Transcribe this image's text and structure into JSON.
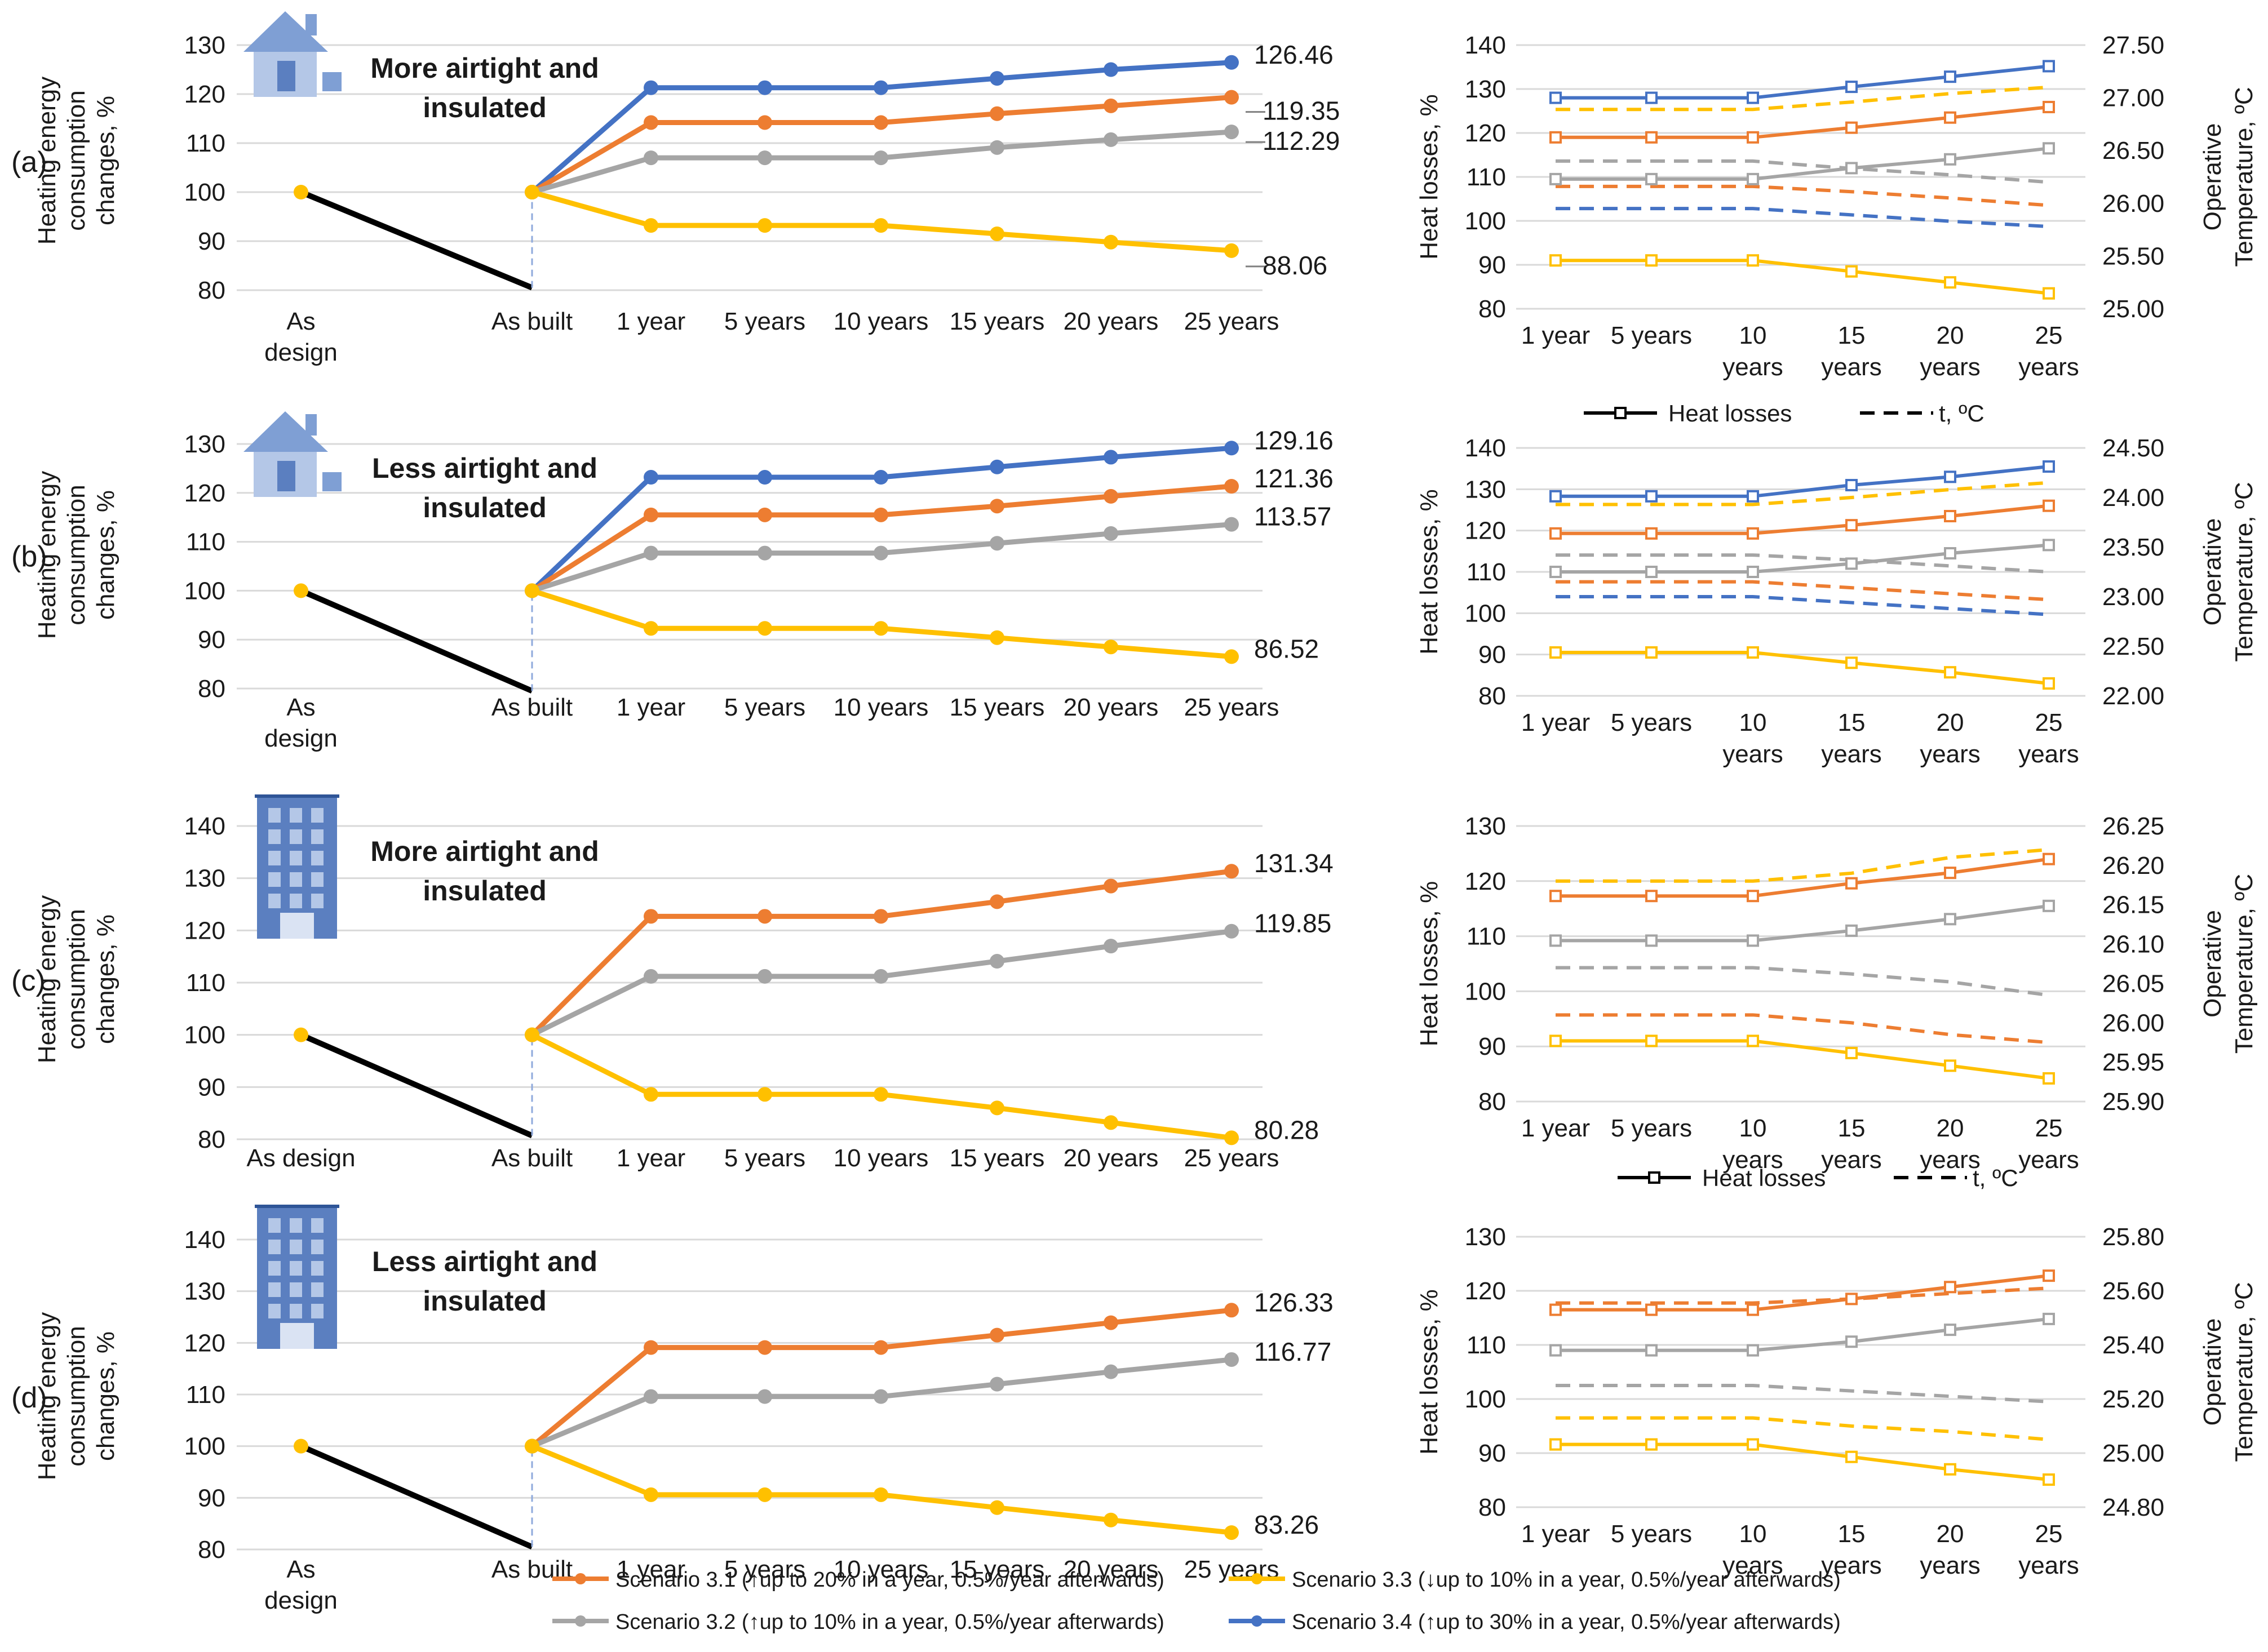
{
  "figure": {
    "scenario_colors": {
      "3.1": "#ED7D31",
      "3.2": "#A5A5A5",
      "3.3": "#FFC000",
      "3.4": "#4472C4"
    },
    "legend": {
      "items": [
        {
          "id": "3.1",
          "label": "Scenario 3.1 (↑up to 20% in a year, 0.5%/year afterwards)"
        },
        {
          "id": "3.3",
          "label": "Scenario 3.3 (↓up to 10% in a year, 0.5%/year afterwards)"
        },
        {
          "id": "3.2",
          "label": "Scenario 3.2 (↑up to 10% in a year, 0.5%/year afterwards)"
        },
        {
          "id": "3.4",
          "label": "Scenario 3.4 (↑up to 30% in a year, 0.5%/year afterwards)"
        }
      ]
    },
    "right_legend": {
      "solid": "Heat losses",
      "dashed": "t, ºC"
    }
  },
  "chart_data": [
    {
      "panel": "(a)",
      "type": "line",
      "icon": "house-icon",
      "title": "More airtight and insulated",
      "title_color": "#4472C4",
      "ylabel": "Heating energy consumption changes, %",
      "ylim": [
        80,
        130
      ],
      "yticks": [
        80,
        90,
        100,
        110,
        120,
        130
      ],
      "categories": [
        "As design",
        "As built",
        "1 year",
        "5 years",
        "10 years",
        "15 years",
        "20 years",
        "25 years"
      ],
      "baseline": {
        "as_design": 100,
        "as_built": 80.5
      },
      "series": [
        {
          "name": "Scenario 3.4",
          "id": "3.4",
          "values": [
            null,
            100,
            121.3,
            121.3,
            121.3,
            123.2,
            125.0,
            126.46
          ],
          "end_label": "126.46"
        },
        {
          "name": "Scenario 3.1",
          "id": "3.1",
          "values": [
            null,
            100,
            114.2,
            114.2,
            114.2,
            116.0,
            117.6,
            119.35
          ],
          "end_label": "119.35"
        },
        {
          "name": "Scenario 3.2",
          "id": "3.2",
          "values": [
            null,
            100,
            107.0,
            107.0,
            107.0,
            109.1,
            110.7,
            112.29
          ],
          "end_label": "112.29"
        },
        {
          "name": "Scenario 3.3",
          "id": "3.3",
          "values": [
            null,
            100,
            93.2,
            93.2,
            93.2,
            91.5,
            89.8,
            88.06
          ],
          "end_label": "88.06"
        }
      ]
    },
    {
      "panel": "(a)",
      "type": "line",
      "ylabel": "Heat losses, %",
      "y2label": "Operative Temperature, ºC",
      "ylim": [
        80,
        140
      ],
      "yticks": [
        80,
        90,
        100,
        110,
        120,
        130,
        140
      ],
      "y2lim": [
        25.0,
        27.5
      ],
      "y2ticks": [
        "25.00",
        "25.50",
        "26.00",
        "26.50",
        "27.00",
        "27.50"
      ],
      "categories": [
        "1 year",
        "5 years",
        "10 years",
        "15 years",
        "20 years",
        "25 years"
      ],
      "heat_losses": [
        {
          "id": "3.4",
          "values": [
            128,
            128,
            128,
            130.5,
            132.8,
            135.2
          ]
        },
        {
          "id": "3.1",
          "values": [
            119,
            119,
            119,
            121.2,
            123.5,
            125.9
          ]
        },
        {
          "id": "3.2",
          "values": [
            109.5,
            109.5,
            109.5,
            112,
            114,
            116.5
          ]
        },
        {
          "id": "3.3",
          "values": [
            91,
            91,
            91,
            88.5,
            86,
            83.5
          ]
        }
      ],
      "temperature": [
        {
          "id": "3.3",
          "values": [
            26.89,
            26.89,
            26.89,
            26.96,
            27.04,
            27.1
          ]
        },
        {
          "id": "3.2",
          "values": [
            26.4,
            26.4,
            26.4,
            26.33,
            26.27,
            26.2
          ]
        },
        {
          "id": "3.1",
          "values": [
            26.16,
            26.16,
            26.16,
            26.11,
            26.05,
            25.98
          ]
        },
        {
          "id": "3.4",
          "values": [
            25.95,
            25.95,
            25.95,
            25.89,
            25.83,
            25.78
          ]
        }
      ]
    },
    {
      "panel": "(b)",
      "type": "line",
      "icon": "house-icon",
      "title": "Less airtight and insulated",
      "title_color": "#8FAADC",
      "ylabel": "Heating energy consumption changes, %",
      "ylim": [
        80,
        130
      ],
      "yticks": [
        80,
        90,
        100,
        110,
        120,
        130
      ],
      "categories": [
        "As design",
        "As built",
        "1 year",
        "5 years",
        "10 years",
        "15 years",
        "20 years",
        "25 years"
      ],
      "baseline": {
        "as_design": 100,
        "as_built": 79.5
      },
      "series": [
        {
          "name": "Scenario 3.4",
          "id": "3.4",
          "values": [
            null,
            100,
            123.2,
            123.2,
            123.2,
            125.3,
            127.3,
            129.16
          ],
          "end_label": "129.16"
        },
        {
          "name": "Scenario 3.1",
          "id": "3.1",
          "values": [
            null,
            100,
            115.5,
            115.5,
            115.5,
            117.3,
            119.3,
            121.36
          ],
          "end_label": "121.36"
        },
        {
          "name": "Scenario 3.2",
          "id": "3.2",
          "values": [
            null,
            100,
            107.7,
            107.7,
            107.7,
            109.7,
            111.7,
            113.57
          ],
          "end_label": "113.57"
        },
        {
          "name": "Scenario 3.3",
          "id": "3.3",
          "values": [
            null,
            100,
            92.3,
            92.3,
            92.3,
            90.4,
            88.5,
            86.52
          ],
          "end_label": "86.52"
        }
      ]
    },
    {
      "panel": "(b)",
      "type": "line",
      "ylabel": "Heat losses, %",
      "y2label": "Operative Temperature, ºC",
      "ylim": [
        80,
        140
      ],
      "yticks": [
        80,
        90,
        100,
        110,
        120,
        130,
        140
      ],
      "y2lim": [
        22.0,
        24.5
      ],
      "y2ticks": [
        "22.00",
        "22.50",
        "23.00",
        "23.50",
        "24.00",
        "24.50"
      ],
      "categories": [
        "1 year",
        "5 years",
        "10 years",
        "15 years",
        "20 years",
        "25 years"
      ],
      "heat_losses": [
        {
          "id": "3.4",
          "values": [
            128.3,
            128.3,
            128.3,
            131,
            133,
            135.5
          ]
        },
        {
          "id": "3.1",
          "values": [
            119.3,
            119.3,
            119.3,
            121.3,
            123.5,
            126
          ]
        },
        {
          "id": "3.2",
          "values": [
            110,
            110,
            110,
            112,
            114.5,
            116.5
          ]
        },
        {
          "id": "3.3",
          "values": [
            90.5,
            90.5,
            90.5,
            88,
            85.7,
            83
          ]
        }
      ],
      "temperature": [
        {
          "id": "3.3",
          "values": [
            23.93,
            23.93,
            23.93,
            24.0,
            24.08,
            24.15
          ]
        },
        {
          "id": "3.2",
          "values": [
            23.42,
            23.42,
            23.42,
            23.37,
            23.31,
            23.25
          ]
        },
        {
          "id": "3.1",
          "values": [
            23.15,
            23.15,
            23.15,
            23.09,
            23.03,
            22.97
          ]
        },
        {
          "id": "3.4",
          "values": [
            23.0,
            23.0,
            23.0,
            22.94,
            22.88,
            22.82
          ]
        }
      ]
    },
    {
      "panel": "(c)",
      "type": "line",
      "icon": "building-icon",
      "title": "More airtight and insulated",
      "title_color": "#4472C4",
      "ylabel": "Heating energy consumption changes, %",
      "ylim": [
        80,
        140
      ],
      "yticks": [
        80,
        90,
        100,
        110,
        120,
        130,
        140
      ],
      "categories": [
        "As design",
        "As built",
        "1 year",
        "5 years",
        "10 years",
        "15 years",
        "20 years",
        "25 years"
      ],
      "baseline": {
        "as_design": 100,
        "as_built": 80.7
      },
      "series": [
        {
          "name": "Scenario 3.1",
          "id": "3.1",
          "values": [
            null,
            100,
            122.7,
            122.7,
            122.7,
            125.5,
            128.5,
            131.34
          ],
          "end_label": "131.34"
        },
        {
          "name": "Scenario 3.2",
          "id": "3.2",
          "values": [
            null,
            100,
            111.2,
            111.2,
            111.2,
            114.1,
            117.0,
            119.85
          ],
          "end_label": "119.85"
        },
        {
          "name": "Scenario 3.3",
          "id": "3.3",
          "values": [
            null,
            100,
            88.6,
            88.6,
            88.6,
            86.0,
            83.2,
            80.28
          ],
          "end_label": "80.28"
        }
      ]
    },
    {
      "panel": "(c)",
      "type": "line",
      "ylabel": "Heat losses, %",
      "y2label": "Operative Temperature, ºC",
      "ylim": [
        80,
        130
      ],
      "yticks": [
        80,
        90,
        100,
        110,
        120,
        130
      ],
      "y2lim": [
        25.9,
        26.25
      ],
      "y2ticks": [
        "25.90",
        "25.95",
        "26.00",
        "26.05",
        "26.10",
        "26.15",
        "26.20",
        "26.25"
      ],
      "categories": [
        "1 year",
        "5 years",
        "10 years",
        "15 years",
        "20 years",
        "25 years"
      ],
      "heat_losses": [
        {
          "id": "3.1",
          "values": [
            117.3,
            117.3,
            117.3,
            119.6,
            121.5,
            124
          ]
        },
        {
          "id": "3.2",
          "values": [
            109.2,
            109.2,
            109.2,
            111,
            113.1,
            115.5
          ]
        },
        {
          "id": "3.3",
          "values": [
            91,
            91,
            91,
            88.8,
            86.5,
            84.2
          ]
        }
      ],
      "temperature": [
        {
          "id": "3.3",
          "values": [
            26.18,
            26.18,
            26.18,
            26.19,
            26.21,
            26.22
          ]
        },
        {
          "id": "3.2",
          "values": [
            26.07,
            26.07,
            26.07,
            26.062,
            26.052,
            26.035
          ]
        },
        {
          "id": "3.1",
          "values": [
            26.01,
            26.01,
            26.01,
            26.0,
            25.985,
            25.975
          ]
        }
      ]
    },
    {
      "panel": "(d)",
      "type": "line",
      "icon": "building-icon",
      "title": "Less airtight and insulated",
      "title_color": "#8FAADC",
      "ylabel": "Heating energy consumption changes, %",
      "ylim": [
        80,
        140
      ],
      "yticks": [
        80,
        90,
        100,
        110,
        120,
        130,
        140
      ],
      "categories": [
        "As design",
        "As built",
        "1 year",
        "5 years",
        "10 years",
        "15 years",
        "20 years",
        "25 years"
      ],
      "baseline": {
        "as_design": 100,
        "as_built": 80.5
      },
      "series": [
        {
          "name": "Scenario 3.1",
          "id": "3.1",
          "values": [
            null,
            100,
            119.1,
            119.1,
            119.1,
            121.5,
            123.9,
            126.33
          ],
          "end_label": "126.33"
        },
        {
          "name": "Scenario 3.2",
          "id": "3.2",
          "values": [
            null,
            100,
            109.6,
            109.6,
            109.6,
            112.0,
            114.4,
            116.77
          ],
          "end_label": "116.77"
        },
        {
          "name": "Scenario 3.3",
          "id": "3.3",
          "values": [
            null,
            100,
            90.6,
            90.6,
            90.6,
            88.1,
            85.7,
            83.26
          ],
          "end_label": "83.26"
        }
      ]
    },
    {
      "panel": "(d)",
      "type": "line",
      "ylabel": "Heat losses, %",
      "y2label": "Operative Temperature, ºC",
      "ylim": [
        80,
        130
      ],
      "yticks": [
        80,
        90,
        100,
        110,
        120,
        130
      ],
      "y2lim": [
        24.8,
        25.8
      ],
      "y2ticks": [
        "24.80",
        "25.00",
        "25.20",
        "25.40",
        "25.60",
        "25.80"
      ],
      "categories": [
        "1 year",
        "5 years",
        "10 years",
        "15 years",
        "20 years",
        "25 years"
      ],
      "heat_losses": [
        {
          "id": "3.1",
          "values": [
            116.5,
            116.5,
            116.5,
            118.5,
            120.7,
            122.8
          ]
        },
        {
          "id": "3.2",
          "values": [
            109,
            109,
            109,
            110.6,
            112.8,
            114.8
          ]
        },
        {
          "id": "3.3",
          "values": [
            91.6,
            91.6,
            91.6,
            89.3,
            87,
            85.1
          ]
        }
      ],
      "temperature": [
        {
          "id": "3.1",
          "values": [
            25.555,
            25.555,
            25.555,
            25.57,
            25.59,
            25.61
          ]
        },
        {
          "id": "3.2",
          "values": [
            25.25,
            25.25,
            25.25,
            25.23,
            25.21,
            25.19
          ]
        },
        {
          "id": "3.3",
          "values": [
            25.13,
            25.13,
            25.13,
            25.1,
            25.08,
            25.05
          ]
        }
      ]
    }
  ]
}
